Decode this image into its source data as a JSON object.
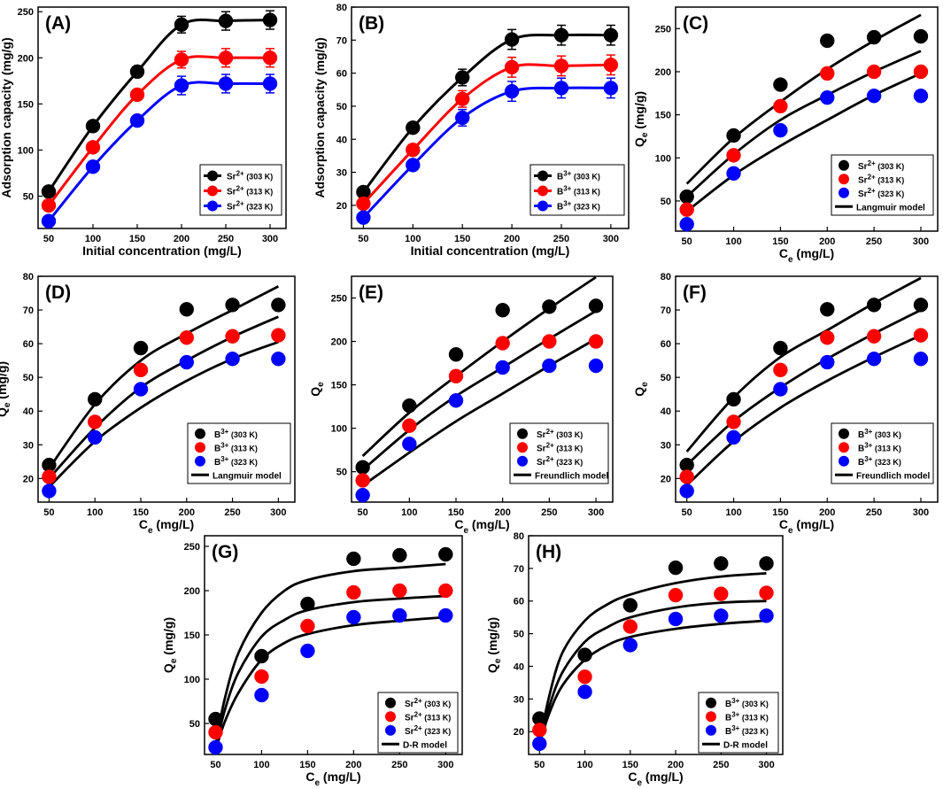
{
  "figure": {
    "panels": [
      {
        "label": "(A)",
        "ylabel": "Adsorption capacity (mg/g)",
        "xlabel": "Initial concentration (mg/L)",
        "ylabel_sub": "",
        "xlabel_sub": "",
        "x_ticks": [
          50,
          100,
          150,
          200,
          250,
          300
        ],
        "y_ticks": [
          50,
          100,
          150,
          200,
          250
        ]
      },
      {
        "label": "(B)",
        "ylabel": "Adsorption capacity (mg/g)",
        "xlabel": "Initial concentration (mg/L)",
        "ylabel_sub": "",
        "xlabel_sub": "",
        "x_ticks": [
          50,
          100,
          150,
          200,
          250,
          300
        ],
        "y_ticks": [
          20,
          30,
          40,
          50,
          60,
          70,
          80
        ]
      },
      {
        "label": "(C)",
        "ylabel": "Q",
        "ylabel_sub": "e",
        "ylabel_rest": " (mg/g)",
        "xlabel": "C",
        "xlabel_sub": "e",
        "xlabel_rest": " (mg/L)",
        "x_ticks": [
          50,
          100,
          150,
          200,
          250,
          300
        ],
        "y_ticks": [
          50,
          100,
          150,
          200,
          250
        ]
      },
      {
        "label": "(D)",
        "ylabel": "Q",
        "ylabel_sub": "e",
        "ylabel_rest": " (mg/g)",
        "xlabel": "C",
        "xlabel_sub": "e",
        "xlabel_rest": " (mg/L)",
        "x_ticks": [
          50,
          100,
          150,
          200,
          250,
          300
        ],
        "y_ticks": [
          20,
          30,
          40,
          50,
          60,
          70,
          80
        ]
      },
      {
        "label": "(E)",
        "ylabel": "Q",
        "ylabel_sub": "e",
        "ylabel_rest": "",
        "xlabel": "C",
        "xlabel_sub": "e",
        "xlabel_rest": " (mg/L)",
        "x_ticks": [
          50,
          100,
          150,
          200,
          250,
          300
        ],
        "y_ticks": [
          50,
          100,
          150,
          200,
          250
        ]
      },
      {
        "label": "(F)",
        "ylabel": "Q",
        "ylabel_sub": "e",
        "ylabel_rest": "",
        "xlabel": "C",
        "xlabel_sub": "e",
        "xlabel_rest": " (mg/L)",
        "x_ticks": [
          50,
          100,
          150,
          200,
          250,
          300
        ],
        "y_ticks": [
          20,
          30,
          40,
          50,
          60,
          70,
          80
        ]
      },
      {
        "label": "(G)",
        "ylabel": "Q",
        "ylabel_sub": "e",
        "ylabel_rest": " (mg/g)",
        "xlabel": "C",
        "xlabel_sub": "e",
        "xlabel_rest": " (mg/L)",
        "x_ticks": [
          50,
          100,
          150,
          200,
          250,
          300
        ],
        "y_ticks": [
          50,
          100,
          150,
          200,
          250
        ]
      },
      {
        "label": "(H)",
        "ylabel": "Q",
        "ylabel_sub": "e",
        "ylabel_rest": " (mg/g)",
        "xlabel": "C",
        "xlabel_sub": "e",
        "xlabel_rest": " (mg/L)",
        "x_ticks": [
          50,
          100,
          150,
          200,
          250,
          300
        ],
        "y_ticks": [
          20,
          30,
          40,
          50,
          60,
          70,
          80
        ]
      }
    ],
    "legend_entries": {
      "sr": [
        {
          "ion": "Sr",
          "sup": "2+",
          "temp": " (303 K)"
        },
        {
          "ion": "Sr",
          "sup": "2+",
          "temp": " (313 K)"
        },
        {
          "ion": "Sr",
          "sup": "2+",
          "temp": " (323 K)"
        }
      ],
      "b": [
        {
          "ion": "B",
          "sup": "3+",
          "temp": " (303 K)"
        },
        {
          "ion": "B",
          "sup": "3+",
          "temp": " (313 K)"
        },
        {
          "ion": "B",
          "sup": "3+",
          "temp": " (323 K)"
        }
      ]
    },
    "model_labels": {
      "C": "Langmuir model",
      "D": "Langmuir model",
      "E": "Freundlich model",
      "F": "Freundlich model",
      "G": "D-R model",
      "H": "D-R model"
    },
    "colors": {
      "t303": "#000000",
      "t313": "#ff0000",
      "t323": "#0000ff",
      "model": "#000000"
    }
  },
  "chart_data": [
    {
      "panel": "A",
      "type": "line",
      "errorbars": true,
      "x": [
        50,
        100,
        150,
        200,
        250,
        300
      ],
      "xlim": [
        38,
        318
      ],
      "ylim": [
        15,
        255
      ],
      "series": [
        {
          "name": "Sr2+ (303 K)",
          "values": [
            55,
            126,
            185,
            236,
            240,
            241
          ],
          "err": [
            0,
            0,
            0,
            9,
            10,
            10
          ]
        },
        {
          "name": "Sr2+ (313 K)",
          "values": [
            40,
            103,
            160,
            198,
            200,
            200
          ],
          "err": [
            0,
            0,
            0,
            9,
            10,
            10
          ]
        },
        {
          "name": "Sr2+ (323 K)",
          "values": [
            23,
            82,
            132,
            170,
            172,
            172
          ],
          "err": [
            0,
            0,
            0,
            10,
            10,
            10
          ]
        }
      ]
    },
    {
      "panel": "B",
      "type": "line",
      "errorbars": true,
      "x": [
        50,
        100,
        150,
        200,
        250,
        300
      ],
      "xlim": [
        38,
        318
      ],
      "ylim": [
        13,
        80
      ],
      "series": [
        {
          "name": "B3+ (303 K)",
          "values": [
            24,
            43.5,
            58.7,
            70.2,
            71.5,
            71.5
          ],
          "err": [
            0,
            0,
            2.5,
            3,
            3,
            3
          ]
        },
        {
          "name": "B3+ (313 K)",
          "values": [
            20.5,
            36.8,
            52.2,
            61.8,
            62.2,
            62.5
          ],
          "err": [
            0,
            0,
            2.5,
            3,
            3,
            3
          ]
        },
        {
          "name": "B3+ (323 K)",
          "values": [
            16.3,
            32.2,
            46.5,
            54.5,
            55.5,
            55.5
          ],
          "err": [
            0,
            0,
            2.5,
            3,
            3,
            3
          ]
        }
      ]
    },
    {
      "panel": "C",
      "type": "scatter",
      "model": "Langmuir",
      "x": [
        50,
        100,
        150,
        200,
        250,
        300
      ],
      "xlim": [
        38,
        318
      ],
      "ylim": [
        15,
        275
      ],
      "series": [
        {
          "name": "Sr2+ (303 K)",
          "values": [
            55,
            126,
            185,
            236,
            240,
            241
          ]
        },
        {
          "name": "Sr2+ (313 K)",
          "values": [
            40,
            103,
            160,
            198,
            200,
            200
          ]
        },
        {
          "name": "Sr2+ (323 K)",
          "values": [
            23,
            82,
            132,
            170,
            172,
            172
          ]
        }
      ],
      "model_curves": [
        {
          "x": [
            50,
            100,
            150,
            200,
            250,
            300
          ],
          "values": [
            70,
            123,
            165,
            203,
            236,
            266
          ]
        },
        {
          "x": [
            50,
            100,
            150,
            200,
            250,
            300
          ],
          "values": [
            55,
            104,
            144,
            173,
            200,
            224
          ]
        },
        {
          "x": [
            50,
            100,
            150,
            200,
            250,
            300
          ],
          "values": [
            38,
            80,
            114,
            144,
            173,
            198
          ]
        }
      ]
    },
    {
      "panel": "D",
      "type": "scatter",
      "model": "Langmuir",
      "x": [
        50,
        100,
        150,
        200,
        250,
        300
      ],
      "xlim": [
        38,
        318
      ],
      "ylim": [
        13,
        80
      ],
      "series": [
        {
          "name": "B3+ (303 K)",
          "values": [
            24,
            43.5,
            58.7,
            70.2,
            71.5,
            71.5
          ]
        },
        {
          "name": "B3+ (313 K)",
          "values": [
            20.5,
            36.8,
            52.2,
            61.8,
            62.2,
            62.5
          ]
        },
        {
          "name": "B3+ (323 K)",
          "values": [
            16.3,
            32.2,
            46.5,
            54.5,
            55.5,
            55.5
          ]
        }
      ],
      "model_curves": [
        {
          "x": [
            50,
            100,
            150,
            200,
            250,
            300
          ],
          "values": [
            23,
            42,
            55,
            63,
            70,
            77
          ]
        },
        {
          "x": [
            50,
            100,
            150,
            200,
            250,
            300
          ],
          "values": [
            20,
            35,
            47,
            55,
            62,
            68
          ]
        },
        {
          "x": [
            50,
            100,
            150,
            200,
            250,
            300
          ],
          "values": [
            17.5,
            31,
            41,
            49,
            55.5,
            60.5
          ]
        }
      ]
    },
    {
      "panel": "E",
      "type": "scatter",
      "model": "Freundlich",
      "x": [
        50,
        100,
        150,
        200,
        250,
        300
      ],
      "xlim": [
        38,
        318
      ],
      "ylim": [
        15,
        275
      ],
      "series": [
        {
          "name": "Sr2+ (303 K)",
          "values": [
            55,
            126,
            185,
            236,
            240,
            241
          ]
        },
        {
          "name": "Sr2+ (313 K)",
          "values": [
            40,
            103,
            160,
            198,
            200,
            200
          ]
        },
        {
          "name": "Sr2+ (323 K)",
          "values": [
            23,
            82,
            132,
            170,
            172,
            172
          ]
        }
      ],
      "model_curves": [
        {
          "x": [
            50,
            100,
            150,
            200,
            250,
            300
          ],
          "values": [
            68,
            118,
            160,
            200,
            238,
            274
          ]
        },
        {
          "x": [
            50,
            100,
            150,
            200,
            250,
            300
          ],
          "values": [
            52,
            98,
            137,
            170,
            203,
            235
          ]
        },
        {
          "x": [
            50,
            100,
            150,
            200,
            250,
            300
          ],
          "values": [
            34,
            72,
            108,
            140,
            172,
            203
          ]
        }
      ]
    },
    {
      "panel": "F",
      "type": "scatter",
      "model": "Freundlich",
      "x": [
        50,
        100,
        150,
        200,
        250,
        300
      ],
      "xlim": [
        38,
        318
      ],
      "ylim": [
        13,
        80
      ],
      "series": [
        {
          "name": "B3+ (303 K)",
          "values": [
            24,
            43.5,
            58.7,
            70.2,
            71.5,
            71.5
          ]
        },
        {
          "name": "B3+ (313 K)",
          "values": [
            20.5,
            36.8,
            52.2,
            61.8,
            62.2,
            62.5
          ]
        },
        {
          "name": "B3+ (323 K)",
          "values": [
            16.3,
            32.2,
            46.5,
            54.5,
            55.5,
            55.5
          ]
        }
      ],
      "model_curves": [
        {
          "x": [
            50,
            100,
            150,
            200,
            250,
            300
          ],
          "values": [
            28,
            44,
            56,
            64,
            72,
            79.5
          ]
        },
        {
          "x": [
            50,
            100,
            150,
            200,
            250,
            300
          ],
          "values": [
            24,
            37,
            47,
            55.5,
            63,
            70
          ]
        },
        {
          "x": [
            50,
            100,
            150,
            200,
            250,
            300
          ],
          "values": [
            18,
            31,
            41,
            49,
            56,
            62.5
          ]
        }
      ]
    },
    {
      "panel": "G",
      "type": "scatter",
      "model": "D-R",
      "x": [
        50,
        100,
        150,
        200,
        250,
        300
      ],
      "xlim": [
        38,
        318
      ],
      "ylim": [
        15,
        262
      ],
      "series": [
        {
          "name": "Sr2+ (303 K)",
          "values": [
            55,
            126,
            185,
            236,
            240,
            241
          ]
        },
        {
          "name": "Sr2+ (313 K)",
          "values": [
            40,
            103,
            160,
            198,
            200,
            200
          ]
        },
        {
          "name": "Sr2+ (323 K)",
          "values": [
            23,
            82,
            132,
            170,
            172,
            172
          ]
        }
      ],
      "model_curves": [
        {
          "x": [
            50,
            60,
            75,
            100,
            125,
            150,
            200,
            250,
            300
          ],
          "values": [
            25,
            78,
            130,
            175,
            200,
            212,
            222,
            226,
            230
          ]
        },
        {
          "x": [
            50,
            60,
            75,
            100,
            125,
            150,
            200,
            250,
            300
          ],
          "values": [
            22,
            65,
            108,
            148,
            167,
            178,
            187,
            191,
            194
          ]
        },
        {
          "x": [
            50,
            60,
            75,
            100,
            125,
            150,
            200,
            250,
            300
          ],
          "values": [
            20,
            52,
            85,
            122,
            141,
            151,
            161,
            166,
            170
          ]
        }
      ]
    },
    {
      "panel": "H",
      "type": "scatter",
      "model": "D-R",
      "x": [
        50,
        100,
        150,
        200,
        250,
        300
      ],
      "xlim": [
        38,
        318
      ],
      "ylim": [
        13,
        80
      ],
      "series": [
        {
          "name": "B3+ (303 K)",
          "values": [
            24,
            43.5,
            58.7,
            70.2,
            71.5,
            71.5
          ]
        },
        {
          "name": "B3+ (313 K)",
          "values": [
            20.5,
            36.8,
            52.2,
            61.8,
            62.2,
            62.5
          ]
        },
        {
          "name": "B3+ (323 K)",
          "values": [
            16.3,
            32.2,
            46.5,
            54.5,
            55.5,
            55.5
          ]
        }
      ],
      "model_curves": [
        {
          "x": [
            50,
            60,
            75,
            100,
            125,
            150,
            200,
            250,
            300
          ],
          "values": [
            16,
            30,
            44,
            54,
            59,
            62,
            65.5,
            67.5,
            68.5
          ]
        },
        {
          "x": [
            50,
            60,
            75,
            100,
            125,
            150,
            200,
            250,
            300
          ],
          "values": [
            16,
            27,
            38,
            47.5,
            52,
            55,
            58,
            59.5,
            60
          ]
        },
        {
          "x": [
            50,
            60,
            75,
            100,
            125,
            150,
            200,
            250,
            300
          ],
          "values": [
            16,
            25,
            34,
            42,
            46.5,
            49,
            51.5,
            53,
            54
          ]
        }
      ]
    }
  ]
}
